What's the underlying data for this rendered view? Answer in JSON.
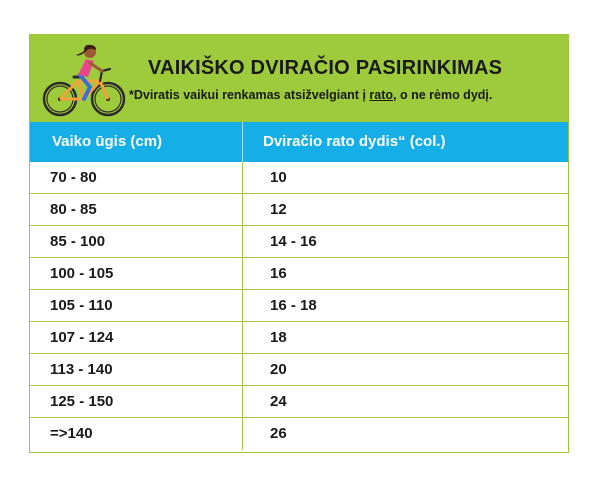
{
  "banner": {
    "title": "VAIKIŠKO DVIRAČIO PASIRINKIMAS",
    "note_prefix": "*Dviratis vaikui renkamas atsižvelgiant į ",
    "note_underlined": "rato",
    "note_suffix": ", o ne rėmo dydį.",
    "illustration_icon": "girl-on-bicycle-icon"
  },
  "table": {
    "headers": [
      "Vaiko ūgis (cm)",
      "Dviračio rato dydis“ (col.)"
    ],
    "rows": [
      [
        "70 - 80",
        "10"
      ],
      [
        "80 - 85",
        "12"
      ],
      [
        "85 - 100",
        "14 - 16"
      ],
      [
        "100 - 105",
        "16"
      ],
      [
        "105 - 110",
        "16 - 18"
      ],
      [
        "107 - 124",
        "18"
      ],
      [
        "113 - 140",
        "20"
      ],
      [
        "125 - 150",
        "24"
      ],
      [
        "=>140",
        "26"
      ]
    ]
  },
  "colors": {
    "banner_green": "#9ecb3c",
    "header_blue": "#16aee6",
    "border_green": "#a6c94a",
    "text_dark": "#1a1a1a"
  }
}
